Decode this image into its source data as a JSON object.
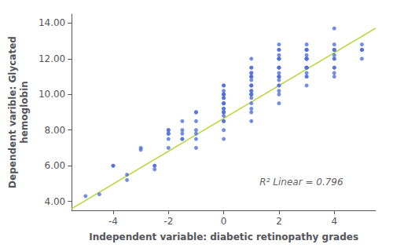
{
  "chart_data": {
    "type": "scatter",
    "xlabel": "Independent variable: diabetic retinopathy grades",
    "ylabel": "Dependent varible: Glycated\nhemoglobin",
    "xlim": [
      -5.5,
      5.5
    ],
    "ylim": [
      3.5,
      14.5
    ],
    "xticks": [
      -4,
      -2,
      0,
      2,
      4
    ],
    "yticks": [
      {
        "value": 4.0,
        "label": "4.00"
      },
      {
        "value": 6.0,
        "label": "6.00"
      },
      {
        "value": 8.0,
        "label": "8.00"
      },
      {
        "value": 10.0,
        "label": "10.00"
      },
      {
        "value": 12.0,
        "label": "12.00"
      },
      {
        "value": 14.0,
        "label": "14.00"
      }
    ],
    "grid": false,
    "series": [
      {
        "type": "scatter",
        "x": [
          -5,
          -4.5,
          -4,
          -4,
          -3.5,
          -3.5,
          -3,
          -3,
          -2.5,
          -2.5,
          -2.5,
          -2,
          -2,
          -2,
          -2,
          -2,
          -2,
          -1.5,
          -1.5,
          -1.5,
          -1.5,
          -1.5,
          -1,
          -1,
          -1,
          -1,
          -1,
          -1,
          -1,
          0,
          0,
          0,
          0,
          0,
          0,
          0,
          0,
          0,
          0,
          0,
          0,
          0,
          0,
          0,
          0,
          0,
          0,
          0,
          0,
          0,
          1,
          1,
          1,
          1,
          1,
          1,
          1,
          1,
          1,
          1,
          1,
          1,
          1,
          1,
          1,
          1,
          1,
          1,
          1,
          1,
          1,
          1,
          2,
          2,
          2,
          2,
          2,
          2,
          2,
          2,
          2,
          2,
          2,
          2,
          2,
          2,
          2,
          2,
          2,
          2,
          2,
          2,
          3,
          3,
          3,
          3,
          3,
          3,
          3,
          3,
          3,
          3,
          3,
          3,
          3,
          3,
          3,
          3,
          3,
          3,
          4,
          4,
          4,
          4,
          4,
          4,
          4,
          4,
          4,
          4,
          4,
          4,
          5,
          5,
          5,
          5,
          5
        ],
        "values": [
          4.3,
          4.4,
          6.0,
          6.0,
          5.2,
          5.5,
          7.0,
          6.9,
          5.8,
          6.0,
          6.0,
          7.0,
          7.5,
          8.0,
          7.8,
          7.8,
          8.0,
          7.5,
          8.0,
          7.8,
          7.5,
          8.5,
          7.0,
          7.5,
          7.8,
          8.0,
          8.5,
          9.0,
          9.0,
          7.5,
          8.0,
          8.5,
          8.8,
          9.0,
          9.0,
          9.2,
          9.2,
          9.5,
          9.5,
          9.8,
          10.0,
          10.0,
          10.2,
          10.5,
          8.5,
          9.0,
          9.5,
          9.8,
          10.0,
          10.5,
          8.5,
          9.0,
          9.2,
          9.5,
          9.8,
          10.0,
          10.0,
          10.2,
          10.5,
          10.5,
          10.8,
          11.0,
          11.0,
          11.0,
          11.2,
          11.2,
          11.5,
          10.0,
          10.2,
          10.5,
          11.5,
          12.0,
          9.5,
          10.0,
          10.2,
          10.5,
          10.8,
          11.0,
          11.0,
          11.2,
          11.5,
          11.5,
          12.0,
          12.0,
          12.2,
          12.5,
          12.5,
          10.5,
          11.0,
          11.5,
          12.0,
          12.8,
          10.5,
          11.0,
          11.2,
          11.5,
          11.5,
          12.0,
          12.0,
          12.0,
          12.2,
          12.5,
          12.5,
          12.8,
          11.5,
          12.0,
          12.5,
          11.0,
          11.5,
          12.0,
          11.0,
          11.2,
          11.5,
          12.0,
          12.0,
          12.2,
          12.5,
          12.5,
          12.8,
          11.5,
          12.5,
          13.7,
          12.5,
          12.5,
          12.5,
          12.8,
          12.0
        ]
      },
      {
        "type": "line",
        "x": [
          -5.5,
          5.5
        ],
        "values": [
          3.59,
          13.71
        ]
      }
    ],
    "annotations": [
      {
        "text": "R² Linear = 0.796",
        "x": 1.3,
        "y": 4.8
      }
    ]
  }
}
